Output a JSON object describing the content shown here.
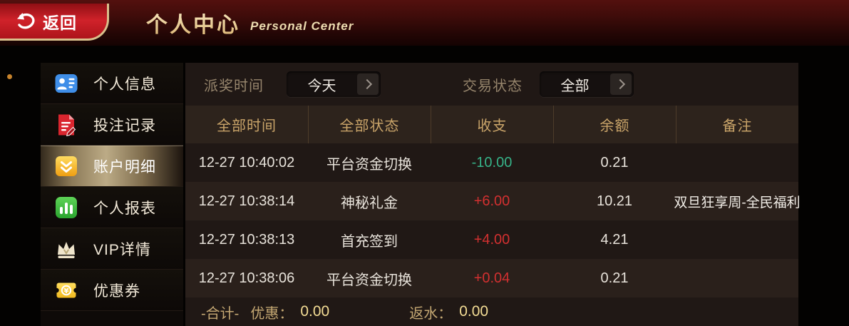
{
  "header": {
    "back_label": "返回",
    "title_cn": "个人中心",
    "title_en": "Personal Center"
  },
  "sidebar": {
    "items": [
      {
        "id": "profile",
        "label": "个人信息",
        "icon": "id-card-icon",
        "selected": false
      },
      {
        "id": "betting-records",
        "label": "投注记录",
        "icon": "document-pencil-icon",
        "selected": false
      },
      {
        "id": "account-details",
        "label": "账户明细",
        "icon": "gold-wallet-icon",
        "selected": true
      },
      {
        "id": "personal-report",
        "label": "个人报表",
        "icon": "bar-chart-icon",
        "selected": false
      },
      {
        "id": "vip-details",
        "label": "VIP详情",
        "icon": "crown-icon",
        "selected": false
      },
      {
        "id": "coupons",
        "label": "优惠券",
        "icon": "coupon-icon",
        "selected": false
      }
    ]
  },
  "filters": {
    "time_label": "派奖时间",
    "time_value": "今天",
    "status_label": "交易状态",
    "status_value": "全部"
  },
  "table": {
    "columns": [
      "全部时间",
      "全部状态",
      "收支",
      "余额",
      "备注"
    ],
    "rows": [
      {
        "time": "12-27 10:40:02",
        "type": "平台资金切换",
        "amount": "-10.00",
        "amount_color": "green",
        "balance": "0.21",
        "note": ""
      },
      {
        "time": "12-27 10:38:14",
        "type": "神秘礼金",
        "amount": "+6.00",
        "amount_color": "red",
        "balance": "10.21",
        "note": "双旦狂享周-全民福利"
      },
      {
        "time": "12-27 10:38:13",
        "type": "首充签到",
        "amount": "+4.00",
        "amount_color": "red",
        "balance": "4.21",
        "note": ""
      },
      {
        "time": "12-27 10:38:06",
        "type": "平台资金切换",
        "amount": "+0.04",
        "amount_color": "red",
        "balance": "0.21",
        "note": ""
      }
    ]
  },
  "footer": {
    "total_label": "-合计-",
    "discount_label": "优惠：",
    "discount_value": "0.00",
    "rebate_label": "返水：",
    "rebate_value": "0.00"
  },
  "colors": {
    "credit_red": "#d23030",
    "debit_green": "#36b288",
    "gold_accent": "#c9a469"
  }
}
